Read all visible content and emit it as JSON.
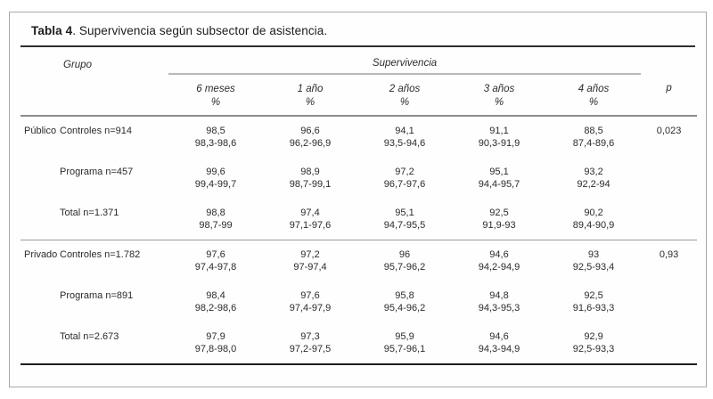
{
  "title": {
    "label_bold": "Tabla 4",
    "label_rest": ". Supervivencia según subsector de asistencia."
  },
  "table": {
    "group_header": "Grupo",
    "span_header": "Supervivencia",
    "p_header": "p",
    "columns": [
      {
        "label": "6 meses",
        "unit": "%"
      },
      {
        "label": "1 año",
        "unit": "%"
      },
      {
        "label": "2 años",
        "unit": "%"
      },
      {
        "label": "3 años",
        "unit": "%"
      },
      {
        "label": "4 años",
        "unit": "%"
      }
    ],
    "sections": [
      {
        "sector": "Público",
        "p": "0,023",
        "rows": [
          {
            "group": "Controles n=914",
            "values": [
              "98,5",
              "96,6",
              "94,1",
              "91,1",
              "88,5"
            ],
            "ci": [
              "98,3-98,6",
              "96,2-96,9",
              "93,5-94,6",
              "90,3-91,9",
              "87,4-89,6"
            ]
          },
          {
            "group": "Programa n=457",
            "values": [
              "99,6",
              "98,9",
              "97,2",
              "95,1",
              "93,2"
            ],
            "ci": [
              "99,4-99,7",
              "98,7-99,1",
              "96,7-97,6",
              "94,4-95,7",
              "92,2-94"
            ]
          },
          {
            "group": "Total n=1.371",
            "values": [
              "98,8",
              "97,4",
              "95,1",
              "92,5",
              "90,2"
            ],
            "ci": [
              "98,7-99",
              "97,1-97,6",
              "94,7-95,5",
              "91,9-93",
              "89,4-90,9"
            ]
          }
        ]
      },
      {
        "sector": "Privado",
        "p": "0,93",
        "rows": [
          {
            "group": "Controles n=1.782",
            "values": [
              "97,6",
              "97,2",
              "96",
              "94,6",
              "93"
            ],
            "ci": [
              "97,4-97,8",
              "97-97,4",
              "95,7-96,2",
              "94,2-94,9",
              "92,5-93,4"
            ]
          },
          {
            "group": "Programa n=891",
            "values": [
              "98,4",
              "97,6",
              "95,8",
              "94,8",
              "92,5"
            ],
            "ci": [
              "98,2-98,6",
              "97,4-97,9",
              "95,4-96,2",
              "94,3-95,3",
              "91,6-93,3"
            ]
          },
          {
            "group": "Total n=2.673",
            "values": [
              "97,9",
              "97,3",
              "95,9",
              "94,6",
              "92,9"
            ],
            "ci": [
              "97,8-98,0",
              "97,2-97,5",
              "95,7-96,1",
              "94,3-94,9",
              "92,5-93,3"
            ]
          }
        ]
      }
    ]
  }
}
